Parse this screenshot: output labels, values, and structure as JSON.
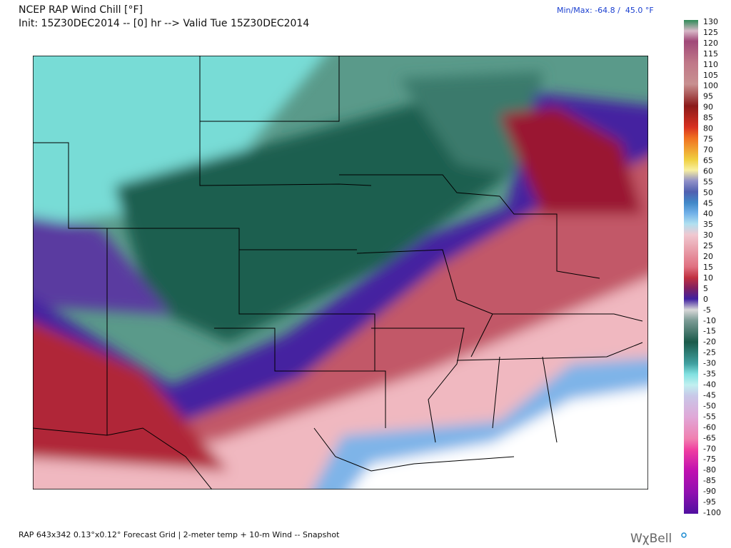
{
  "header": {
    "title": "NCEP RAP Wind Chill [°F]",
    "init": "Init: 15Z30DEC2014 -- [0] hr --> Valid Tue 15Z30DEC2014",
    "min_max": "Min/Max: -64.8 /  45.0 °F"
  },
  "colorbar": {
    "labels": [
      130,
      125,
      120,
      115,
      110,
      105,
      100,
      95,
      90,
      85,
      80,
      75,
      70,
      65,
      60,
      55,
      50,
      45,
      40,
      35,
      30,
      25,
      20,
      15,
      10,
      5,
      0,
      -5,
      -10,
      -15,
      -20,
      -25,
      -30,
      -35,
      -40,
      -45,
      -50,
      -55,
      -60,
      -65,
      -70,
      -75,
      -80,
      -85,
      -90,
      -95,
      -100
    ]
  },
  "footer": {
    "text": "RAP 643x342 0.13°x0.12° Forecast Grid | 2-meter temp + 10-m Wind -- Snapshot",
    "logo": "WχBell"
  }
}
